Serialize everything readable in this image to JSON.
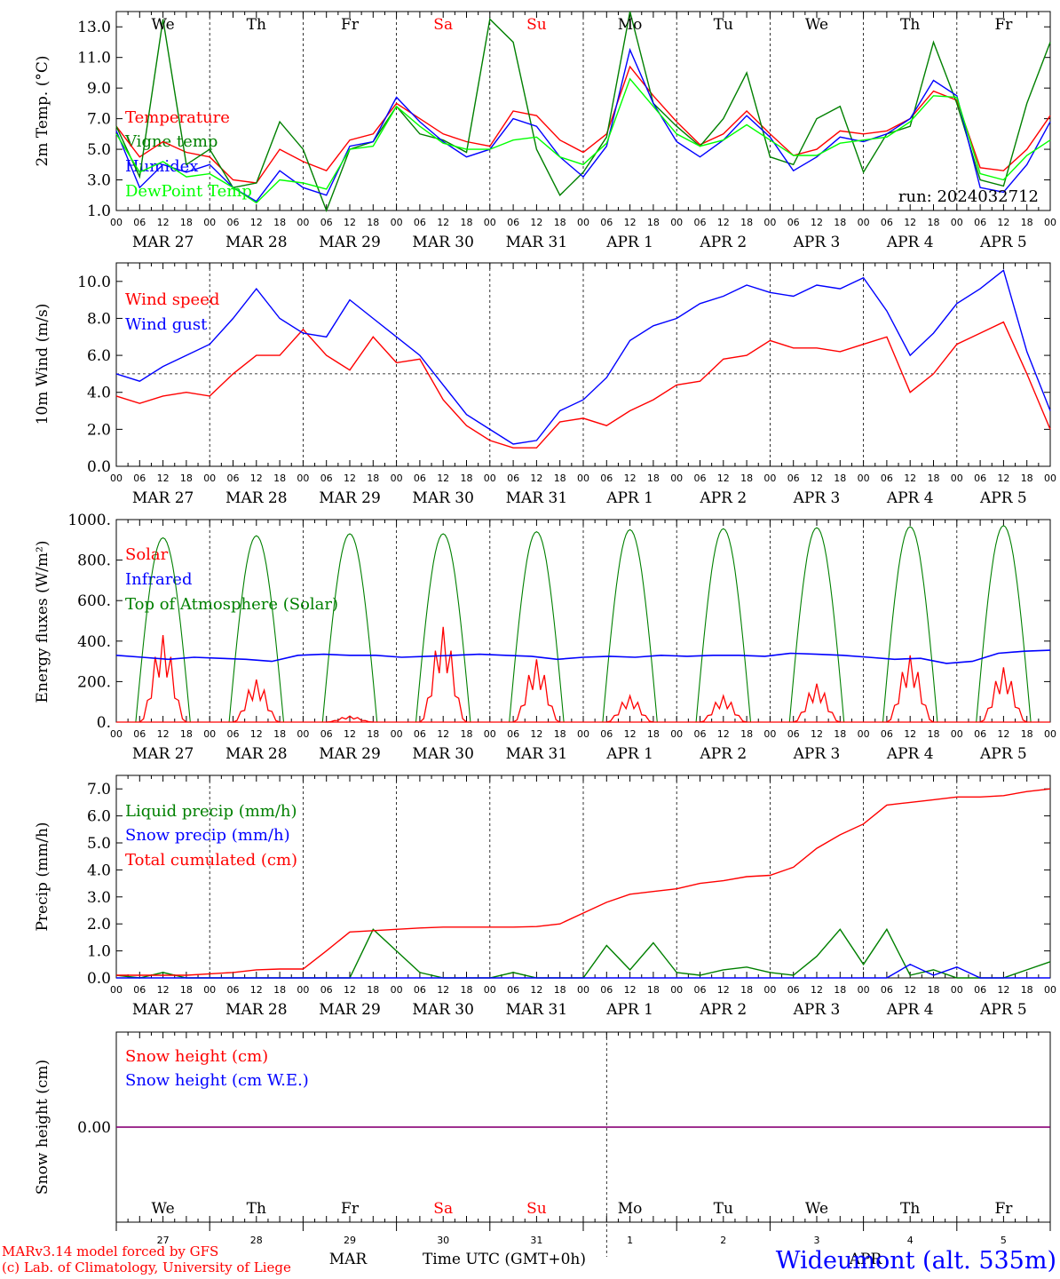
{
  "chart_data": [
    {
      "type": "line",
      "ylabel": "2m Temp. (°C)",
      "ylim": [
        1.0,
        14.0
      ],
      "yticks": [
        "1.0",
        "3.0",
        "5.0",
        "7.0",
        "9.0",
        "11.0",
        "13.0"
      ],
      "x_hours": [
        0,
        6,
        12,
        18,
        24,
        30,
        36,
        42,
        48,
        54,
        60,
        66,
        72,
        78,
        84,
        90,
        96,
        102,
        108,
        114,
        120,
        126,
        132,
        138,
        144,
        150,
        156,
        162,
        168,
        174,
        180,
        186,
        192,
        198,
        204,
        210,
        216,
        222,
        228,
        234,
        240
      ],
      "annotation": "run: 2024032712",
      "series": [
        {
          "name": "Temperature",
          "color": "#ff0000",
          "values": [
            6.5,
            4.5,
            5.5,
            4.8,
            4.5,
            3.0,
            2.8,
            5.0,
            4.2,
            3.6,
            5.6,
            6.0,
            8.0,
            7.0,
            6.0,
            5.5,
            5.2,
            7.5,
            7.2,
            5.6,
            4.8,
            6.0,
            10.4,
            8.5,
            6.8,
            5.3,
            6.0,
            7.5,
            6.0,
            4.6,
            5.0,
            6.2,
            6.0,
            6.2,
            7.0,
            8.8,
            8.2,
            3.8,
            3.6,
            5.0,
            7.2
          ]
        },
        {
          "name": "Vigne temp",
          "color": "#008000",
          "values": [
            6.5,
            3.2,
            13.5,
            4.0,
            5.0,
            2.5,
            2.8,
            6.8,
            5.0,
            1.0,
            5.0,
            5.5,
            7.8,
            6.0,
            5.6,
            4.8,
            13.5,
            12.0,
            5.0,
            2.0,
            3.5,
            5.8,
            14.5,
            8.0,
            6.5,
            5.2,
            7.0,
            10.0,
            4.5,
            4.0,
            7.0,
            7.8,
            3.5,
            6.0,
            6.5,
            12.0,
            8.0,
            3.0,
            2.6,
            8.0,
            12.0
          ]
        },
        {
          "name": "Humidex",
          "color": "#0000ff",
          "values": [
            6.2,
            2.5,
            4.0,
            3.5,
            4.0,
            2.5,
            1.6,
            3.6,
            2.5,
            2.0,
            5.2,
            5.5,
            8.4,
            6.8,
            5.5,
            4.5,
            5.0,
            7.0,
            6.5,
            4.5,
            3.2,
            5.2,
            11.5,
            8.0,
            5.5,
            4.5,
            5.6,
            7.2,
            5.8,
            3.6,
            4.5,
            5.8,
            5.5,
            6.0,
            7.0,
            9.5,
            8.5,
            2.5,
            2.2,
            4.0,
            6.8
          ]
        },
        {
          "name": "DewPoint Temp",
          "color": "#00ff00",
          "values": [
            6.0,
            3.5,
            4.2,
            3.2,
            3.4,
            2.5,
            1.5,
            3.0,
            2.8,
            2.4,
            5.0,
            5.2,
            7.8,
            6.5,
            5.4,
            5.0,
            5.0,
            5.6,
            5.8,
            4.5,
            4.0,
            5.4,
            9.6,
            7.8,
            6.0,
            5.2,
            5.6,
            6.6,
            5.6,
            4.6,
            4.6,
            5.4,
            5.6,
            5.8,
            6.8,
            8.5,
            8.4,
            3.4,
            3.0,
            4.6,
            5.6
          ]
        }
      ]
    },
    {
      "type": "line",
      "ylabel": "10m Wind (m/s)",
      "ylim": [
        0.0,
        11.0
      ],
      "yticks": [
        "0.0",
        "2.0",
        "4.0",
        "6.0",
        "8.0",
        "10.0"
      ],
      "x_hours": [
        0,
        6,
        12,
        18,
        24,
        30,
        36,
        42,
        48,
        54,
        60,
        66,
        72,
        78,
        84,
        90,
        96,
        102,
        108,
        114,
        120,
        126,
        132,
        138,
        144,
        150,
        156,
        162,
        168,
        174,
        180,
        186,
        192,
        198,
        204,
        210,
        216,
        222,
        228,
        234,
        240
      ],
      "reference_line": 5.0,
      "series": [
        {
          "name": "Wind speed",
          "color": "#ff0000",
          "values": [
            3.8,
            3.4,
            3.8,
            4.0,
            3.8,
            5.0,
            6.0,
            6.0,
            7.4,
            6.0,
            5.2,
            7.0,
            5.6,
            5.8,
            3.6,
            2.2,
            1.4,
            1.0,
            1.0,
            2.4,
            2.6,
            2.2,
            3.0,
            3.6,
            4.4,
            4.6,
            5.8,
            6.0,
            6.8,
            6.4,
            6.4,
            6.2,
            6.6,
            7.0,
            4.0,
            5.0,
            6.6,
            7.2,
            7.8,
            5.0,
            2.0
          ]
        },
        {
          "name": "Wind gust",
          "color": "#0000ff",
          "values": [
            5.0,
            4.6,
            5.4,
            6.0,
            6.6,
            8.0,
            9.6,
            8.0,
            7.2,
            7.0,
            9.0,
            8.0,
            7.0,
            6.0,
            4.4,
            2.8,
            2.0,
            1.2,
            1.4,
            3.0,
            3.6,
            4.8,
            6.8,
            7.6,
            8.0,
            8.8,
            9.2,
            9.8,
            9.4,
            9.2,
            9.8,
            9.6,
            10.2,
            8.4,
            6.0,
            7.2,
            8.8,
            9.6,
            10.6,
            6.2,
            3.0
          ]
        }
      ]
    },
    {
      "type": "line",
      "ylabel": "Energy fluxes (W/m²)",
      "ylim": [
        0,
        1000
      ],
      "yticks": [
        "0.",
        "200.",
        "400.",
        "600.",
        "800.",
        "1000."
      ],
      "series": [
        {
          "name": "Solar",
          "color": "#ff0000",
          "daily_peaks": [
            430,
            210,
            30,
            470,
            310,
            130,
            130,
            190,
            330,
            270
          ]
        },
        {
          "name": "Infrared",
          "color": "#0000ff",
          "values": [
            330,
            320,
            310,
            320,
            315,
            310,
            300,
            330,
            335,
            330,
            330,
            320,
            325,
            330,
            335,
            330,
            325,
            310,
            320,
            325,
            320,
            330,
            325,
            330,
            330,
            325,
            340,
            335,
            330,
            320,
            310,
            315,
            290,
            300,
            340,
            350,
            355
          ]
        },
        {
          "name": "Top of Atmosphere (Solar)",
          "color": "#008000",
          "daily_peaks": [
            910,
            920,
            930,
            930,
            940,
            950,
            955,
            960,
            965,
            970
          ]
        }
      ]
    },
    {
      "type": "line",
      "ylabel": "Precip (mm/h)",
      "ylim": [
        0.0,
        7.5
      ],
      "yticks": [
        "0.0",
        "1.0",
        "2.0",
        "3.0",
        "4.0",
        "5.0",
        "6.0",
        "7.0"
      ],
      "x_hours": [
        0,
        6,
        12,
        18,
        24,
        30,
        36,
        42,
        48,
        54,
        60,
        66,
        72,
        78,
        84,
        90,
        96,
        102,
        108,
        114,
        120,
        126,
        132,
        138,
        144,
        150,
        156,
        162,
        168,
        174,
        180,
        186,
        192,
        198,
        204,
        210,
        216,
        222,
        228,
        234,
        240
      ],
      "series": [
        {
          "name": "Liquid precip (mm/h)",
          "color": "#008000",
          "values": [
            0.1,
            0.0,
            0.2,
            0.0,
            0.0,
            0.0,
            0.0,
            0.0,
            0.0,
            0.0,
            0.0,
            1.8,
            1.0,
            0.2,
            0.0,
            0.0,
            0.0,
            0.2,
            0.0,
            0.0,
            0.0,
            1.2,
            0.3,
            1.3,
            0.2,
            0.1,
            0.3,
            0.4,
            0.2,
            0.1,
            0.8,
            1.8,
            0.5,
            1.8,
            0.1,
            0.3,
            0.0,
            0.0,
            0.0,
            0.3,
            0.6
          ]
        },
        {
          "name": "Snow precip (mm/h)",
          "color": "#0000ff",
          "values": [
            0,
            0,
            0,
            0,
            0,
            0,
            0,
            0,
            0,
            0,
            0,
            0,
            0,
            0,
            0,
            0,
            0,
            0,
            0,
            0,
            0,
            0,
            0,
            0,
            0,
            0,
            0,
            0,
            0,
            0,
            0,
            0,
            0,
            0,
            0.5,
            0.1,
            0.4,
            0,
            0,
            0,
            0
          ]
        },
        {
          "name": "Total cumulated (cm)",
          "color": "#ff0000",
          "values": [
            0.1,
            0.1,
            0.1,
            0.1,
            0.15,
            0.2,
            0.3,
            0.33,
            0.33,
            1.0,
            1.7,
            1.75,
            1.8,
            1.85,
            1.88,
            1.88,
            1.88,
            1.88,
            1.9,
            2.0,
            2.4,
            2.8,
            3.1,
            3.2,
            3.3,
            3.5,
            3.6,
            3.75,
            3.8,
            4.1,
            4.8,
            5.3,
            5.7,
            6.4,
            6.5,
            6.6,
            6.7,
            6.7,
            6.75,
            6.9,
            7.0
          ]
        }
      ]
    },
    {
      "type": "line",
      "ylabel": "Snow height (cm)",
      "yticks": [
        "0.00"
      ],
      "series": [
        {
          "name": "Snow height (cm)",
          "color": "#ff0000",
          "values": [
            0,
            0
          ]
        },
        {
          "name": "Snow height (cm W.E.)",
          "color": "#0000ff",
          "values": [
            0,
            0
          ]
        }
      ]
    }
  ],
  "x_axis": {
    "hour_ticks": [
      "00",
      "06",
      "12",
      "18"
    ],
    "dates": [
      "MAR 27",
      "MAR 28",
      "MAR 29",
      "MAR 30",
      "MAR 31",
      "APR  1",
      "APR  2",
      "APR  3",
      "APR  4",
      "APR  5"
    ],
    "weekdays": [
      {
        "label": "We",
        "color": "#000000"
      },
      {
        "label": "Th",
        "color": "#000000"
      },
      {
        "label": "Fr",
        "color": "#000000"
      },
      {
        "label": "Sa",
        "color": "#ff0000"
      },
      {
        "label": "Su",
        "color": "#ff0000"
      },
      {
        "label": "Mo",
        "color": "#000000"
      },
      {
        "label": "Tu",
        "color": "#000000"
      },
      {
        "label": "We",
        "color": "#000000"
      },
      {
        "label": "Th",
        "color": "#000000"
      },
      {
        "label": "Fr",
        "color": "#000000"
      }
    ],
    "day_numbers": [
      "27",
      "28",
      "29",
      "30",
      "31",
      "1",
      "2",
      "3",
      "4",
      "5"
    ],
    "month_left": "MAR",
    "month_right": "APR",
    "title": "Time UTC (GMT+0h)"
  },
  "footer": {
    "credit_line1": "MARv3.14 model forced by GFS",
    "credit_line2": "(c) Lab. of Climatology, University of Liege",
    "station": "Wideumont (alt. 535m)"
  }
}
